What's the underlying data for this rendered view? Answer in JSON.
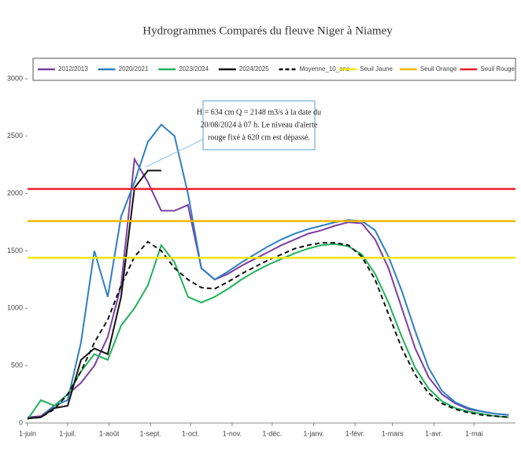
{
  "chart_data": {
    "type": "line",
    "title": "Hydrogrammes Comparés du fleuve Niger à Niamey",
    "annotation": [
      "H = 634 cm Q = 2148 m3/s à la date du",
      "20/08/2024 à 07 h. Le niveau d'alerte",
      "rouge fixé à 620 cm est dépassé."
    ],
    "x": [
      0,
      10,
      20,
      30,
      40,
      50,
      60,
      70,
      80,
      90,
      100,
      110,
      120,
      130,
      140,
      150,
      160,
      170,
      180,
      190,
      200,
      210,
      220,
      230,
      240,
      250,
      260,
      270,
      280,
      290,
      300,
      310,
      320,
      330,
      340,
      350,
      360
    ],
    "xlim": [
      0,
      365
    ],
    "xticks": [
      {
        "value": 0,
        "label": "1-juin"
      },
      {
        "value": 30,
        "label": "1-juil."
      },
      {
        "value": 61,
        "label": "1-août"
      },
      {
        "value": 92,
        "label": "1-sept."
      },
      {
        "value": 122,
        "label": "1-oct."
      },
      {
        "value": 153,
        "label": "1-nov."
      },
      {
        "value": 183,
        "label": "1-déc."
      },
      {
        "value": 214,
        "label": "1-janv."
      },
      {
        "value": 245,
        "label": "1-févr."
      },
      {
        "value": 273,
        "label": "1-mars"
      },
      {
        "value": 304,
        "label": "1-avr."
      },
      {
        "value": 334,
        "label": "1-mai"
      }
    ],
    "ylim": [
      0,
      3000
    ],
    "yticks": [
      0,
      500,
      1000,
      1500,
      2000,
      2500,
      3000
    ],
    "series": [
      {
        "name": "2012/2013",
        "color": "#7b3fa0",
        "values": [
          50,
          60,
          150,
          250,
          350,
          500,
          750,
          1200,
          2300,
          2100,
          1850,
          1850,
          1900,
          1350,
          1250,
          1300,
          1370,
          1430,
          1490,
          1550,
          1600,
          1650,
          1680,
          1720,
          1750,
          1740,
          1600,
          1350,
          1000,
          650,
          400,
          250,
          170,
          120,
          100,
          80,
          70
        ]
      },
      {
        "name": "2020/2021",
        "color": "#2e7fc1",
        "values": [
          40,
          50,
          150,
          200,
          700,
          1500,
          1100,
          1800,
          2100,
          2450,
          2600,
          2500,
          2000,
          1350,
          1250,
          1320,
          1400,
          1470,
          1540,
          1600,
          1650,
          1690,
          1720,
          1750,
          1770,
          1760,
          1680,
          1450,
          1150,
          800,
          480,
          280,
          180,
          130,
          100,
          80,
          70
        ]
      },
      {
        "name": "2023/2024",
        "color": "#1fb35a",
        "values": [
          30,
          200,
          150,
          250,
          450,
          600,
          550,
          850,
          1000,
          1200,
          1550,
          1400,
          1100,
          1050,
          1100,
          1170,
          1250,
          1320,
          1380,
          1430,
          1480,
          1520,
          1550,
          1560,
          1540,
          1470,
          1300,
          1050,
          750,
          480,
          300,
          190,
          130,
          100,
          80,
          60,
          50
        ]
      },
      {
        "name": "2024/2025",
        "color": "#111111",
        "values": [
          40,
          50,
          130,
          150,
          550,
          650,
          600,
          1100,
          2050,
          2200,
          2200,
          null,
          null,
          null,
          null,
          null,
          null,
          null,
          null,
          null,
          null,
          null,
          null,
          null,
          null,
          null,
          null,
          null,
          null,
          null,
          null,
          null,
          null,
          null,
          null,
          null,
          null
        ]
      },
      {
        "name": "Moyenne_10_ans",
        "color": "#111111",
        "dash": true,
        "values": [
          40,
          50,
          120,
          250,
          450,
          700,
          900,
          1200,
          1450,
          1580,
          1500,
          1350,
          1250,
          1180,
          1170,
          1230,
          1300,
          1360,
          1420,
          1470,
          1520,
          1550,
          1570,
          1570,
          1550,
          1450,
          1250,
          950,
          650,
          420,
          260,
          170,
          120,
          90,
          70,
          60,
          50
        ]
      },
      {
        "name": "Seuil Jaune",
        "color": "#f2e600",
        "value": 1440
      },
      {
        "name": "Seuil Orange",
        "color": "#f2b800",
        "value": 1760
      },
      {
        "name": "Seuil Rouge",
        "color": "#e8202a",
        "value": 2040
      }
    ]
  }
}
